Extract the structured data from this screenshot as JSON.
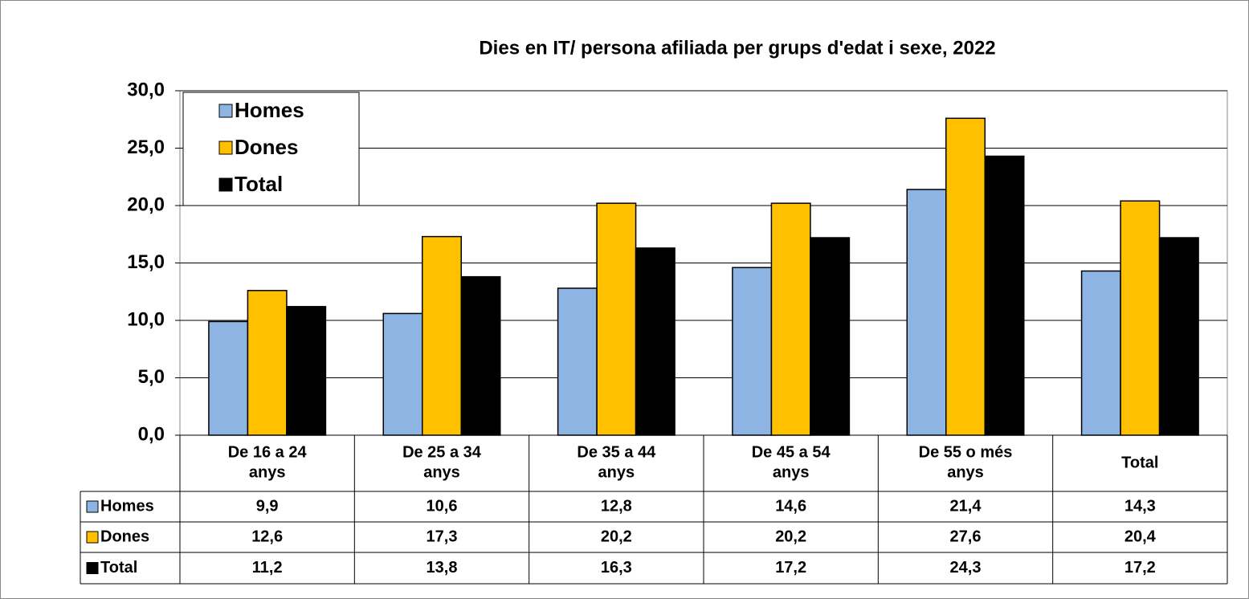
{
  "chart_data": {
    "type": "bar",
    "title": "Dies en IT/ persona afiliada per grups d'edat i sexe, 2022",
    "categories": [
      "De 16 a 24\nanys",
      "De 25 a 34\nanys",
      "De 35 a 44\nanys",
      "De 45 a 54\nanys",
      "De 55 o més\nanys",
      "Total"
    ],
    "series": [
      {
        "name": "Homes",
        "color": "#8db4e2",
        "values": [
          9.9,
          10.6,
          12.8,
          14.6,
          21.4,
          14.3
        ],
        "value_labels": [
          "9,9",
          "10,6",
          "12,8",
          "14,6",
          "21,4",
          "14,3"
        ]
      },
      {
        "name": "Dones",
        "color": "#ffc000",
        "values": [
          12.6,
          17.3,
          20.2,
          20.2,
          27.6,
          20.4
        ],
        "value_labels": [
          "12,6",
          "17,3",
          "20,2",
          "20,2",
          "27,6",
          "20,4"
        ]
      },
      {
        "name": "Total",
        "color": "#000000",
        "values": [
          11.2,
          13.8,
          16.3,
          17.2,
          24.3,
          17.2
        ],
        "value_labels": [
          "11,2",
          "13,8",
          "16,3",
          "17,2",
          "24,3",
          "17,2"
        ]
      }
    ],
    "ylim": [
      0,
      30
    ],
    "yticks": [
      {
        "value": 0,
        "label": "0,0"
      },
      {
        "value": 5,
        "label": "5,0"
      },
      {
        "value": 10,
        "label": "10,0"
      },
      {
        "value": 15,
        "label": "15,0"
      },
      {
        "value": 20,
        "label": "20,0"
      },
      {
        "value": 25,
        "label": "25,0"
      },
      {
        "value": 30,
        "label": "30,0"
      }
    ],
    "grid": true,
    "legend": "top-left"
  }
}
